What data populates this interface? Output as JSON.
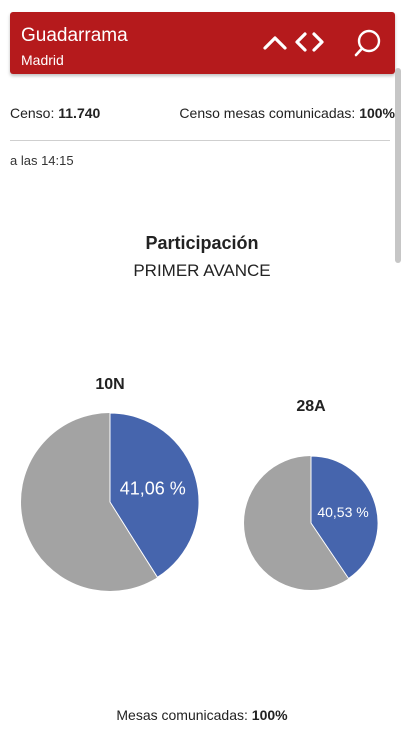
{
  "header": {
    "title": "Guadarrama",
    "subtitle": "Madrid",
    "icons": [
      "chevron-up-icon",
      "chevron-left-icon",
      "chevron-right-icon",
      "search-icon"
    ],
    "color": "#b51a1c"
  },
  "stats": {
    "censo_label": "Censo:",
    "censo_value": "11.740",
    "mesas_label": "Censo mesas comunicadas:",
    "mesas_value": "100%"
  },
  "time_text": "a las 14:15",
  "chart": {
    "title": "Participación",
    "subtitle": "PRIMER AVANCE"
  },
  "chart_data": {
    "type": "pie",
    "title": "Participación",
    "subtitle": "PRIMER AVANCE",
    "series": [
      {
        "name": "10N",
        "value": 41.06,
        "label": "41,06 %"
      },
      {
        "name": "28A",
        "value": 40.53,
        "label": "40,53 %"
      }
    ],
    "colors": {
      "participation": "#4665ad",
      "rest": "#a3a3a3"
    }
  },
  "footer": {
    "label": "Mesas comunicadas:",
    "value": "100%"
  }
}
